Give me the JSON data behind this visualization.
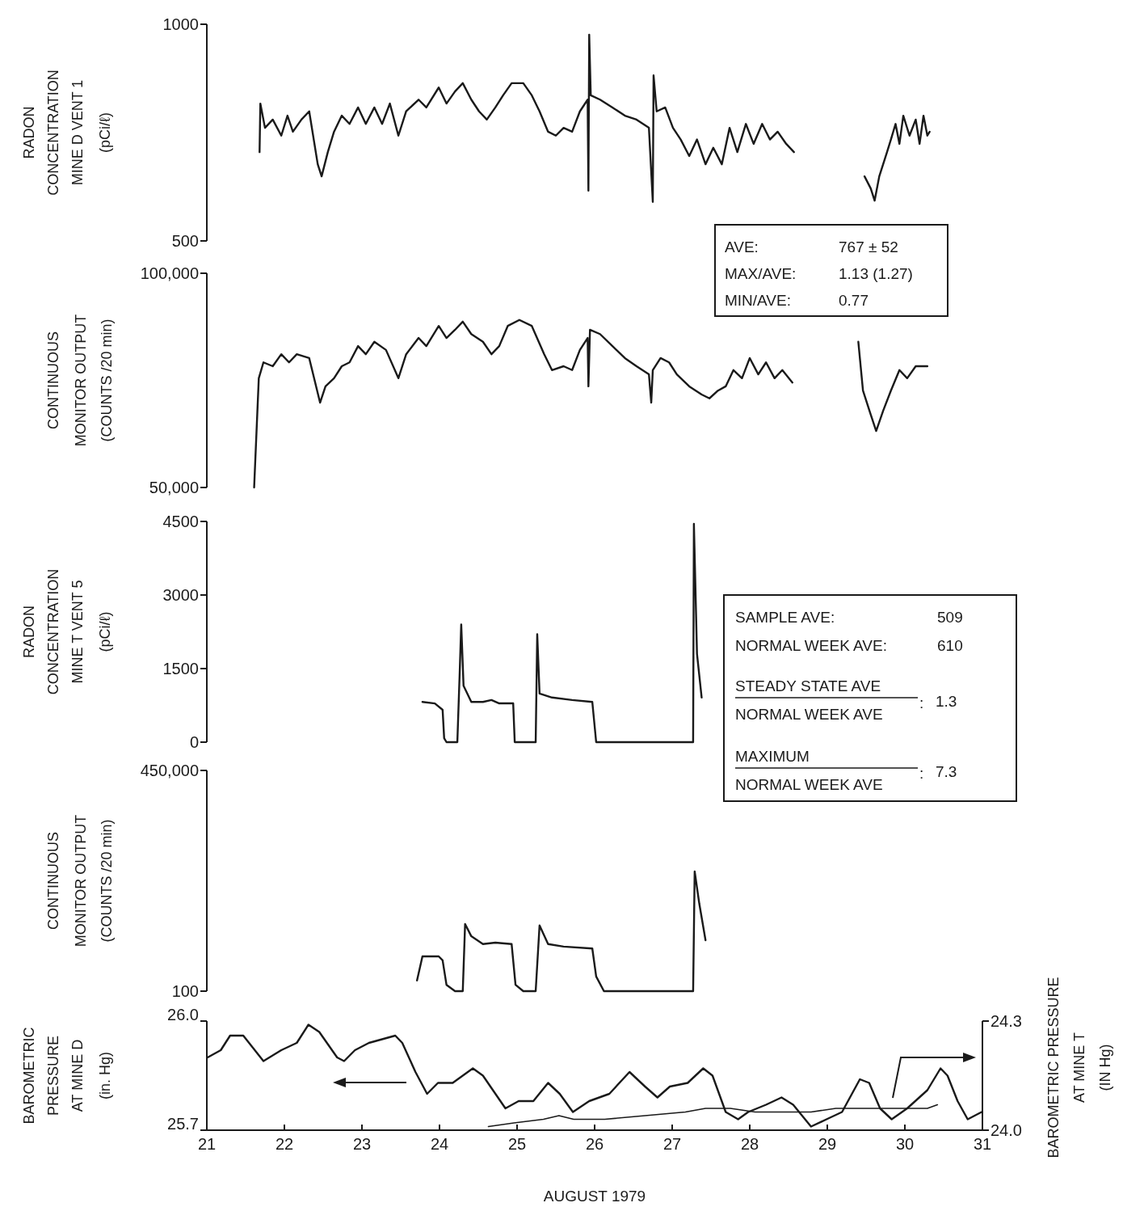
{
  "chart_data": [
    {
      "type": "line",
      "ylabel": "RADON\nCONCENTRATION\nMINE D VENT 1\n(pCi/ℓ)",
      "xlim": [
        21,
        31
      ],
      "ylim": [
        500,
        1000
      ],
      "yticks": [
        500,
        1000
      ],
      "tick_labels": "y",
      "series": [
        {
          "color": "#1a1a1a",
          "x": [
            21.68,
            21.69,
            21.75,
            21.85,
            21.96,
            22.04,
            22.11,
            22.22,
            22.32,
            22.43,
            22.48,
            22.56,
            22.64,
            22.74,
            22.84,
            22.95,
            23.05,
            23.16,
            23.26,
            23.36,
            23.47,
            23.57,
            23.73,
            23.83,
            23.99,
            24.09,
            24.2,
            24.3,
            24.41,
            24.51,
            24.61,
            24.72,
            24.82,
            24.93,
            25.08,
            25.19,
            25.29,
            25.4,
            25.5,
            25.6,
            25.71,
            25.81,
            25.91,
            25.92,
            25.93,
            25.95,
            26.07,
            26.23,
            26.39,
            26.54,
            26.7,
            26.75,
            26.76,
            26.8,
            26.91,
            27.01,
            27.11,
            27.22,
            27.32,
            27.43,
            27.53,
            27.64,
            27.74,
            27.84,
            27.95,
            28.05,
            28.16,
            28.26,
            28.36,
            28.47,
            28.57,
            29.0,
            29.48,
            29.56,
            29.61,
            29.67,
            29.77,
            29.82,
            29.88,
            29.93,
            29.98,
            30.06,
            30.14,
            30.19,
            30.24,
            30.29,
            30.32
          ],
          "values": [
            705,
            817,
            761,
            780,
            743,
            789,
            752,
            780,
            799,
            677,
            649,
            705,
            752,
            789,
            770,
            808,
            770,
            808,
            770,
            817,
            743,
            799,
            826,
            808,
            854,
            817,
            845,
            864,
            826,
            799,
            780,
            808,
            836,
            864,
            864,
            836,
            799,
            752,
            743,
            761,
            752,
            799,
            826,
            616,
            976,
            836,
            826,
            808,
            789,
            780,
            761,
            590,
            882,
            799,
            808,
            761,
            734,
            696,
            734,
            677,
            715,
            677,
            761,
            705,
            770,
            724,
            770,
            734,
            752,
            724,
            705,
            null,
            649,
            621,
            593,
            649,
            705,
            734,
            770,
            724,
            789,
            743,
            780,
            724,
            789,
            743,
            752
          ]
        }
      ],
      "annotations": [
        "AVE:",
        "767 ± 52",
        "MAX/AVE:",
        "1.13 (1.27)",
        "MIN/AVE:",
        "0.77"
      ]
    },
    {
      "type": "line",
      "ylabel": "CONTINUOUS\nMONITOR OUTPUT\n(COUNTS /20 min)",
      "xlim": [
        21,
        31
      ],
      "ylim": [
        50000,
        100000
      ],
      "yticks": [
        {
          "value": 50000,
          "label": "50,000"
        },
        {
          "value": 100000,
          "label": "100,000"
        }
      ],
      "tick_labels": "y",
      "series": [
        {
          "color": "#1a1a1a",
          "x": [
            21.61,
            21.67,
            21.73,
            21.85,
            21.96,
            22.06,
            22.16,
            22.32,
            22.46,
            22.53,
            22.64,
            22.74,
            22.84,
            22.95,
            23.05,
            23.16,
            23.31,
            23.47,
            23.57,
            23.73,
            23.83,
            23.99,
            24.09,
            24.2,
            24.3,
            24.41,
            24.56,
            24.67,
            24.77,
            24.88,
            25.03,
            25.19,
            25.35,
            25.45,
            25.6,
            25.71,
            25.81,
            25.91,
            25.92,
            25.94,
            26.07,
            26.23,
            26.39,
            26.54,
            26.7,
            26.73,
            26.75,
            26.85,
            26.96,
            27.06,
            27.22,
            27.38,
            27.48,
            27.59,
            27.69,
            27.79,
            27.9,
            28.0,
            28.11,
            28.21,
            28.32,
            28.42,
            28.55,
            29.0,
            29.4,
            29.46,
            29.56,
            29.63,
            29.72,
            29.82,
            29.93,
            30.03,
            30.14,
            30.29
          ],
          "values": [
            50000,
            75500,
            79200,
            78300,
            81100,
            79200,
            81100,
            80200,
            69800,
            73600,
            75500,
            78300,
            79200,
            83000,
            81100,
            84000,
            82100,
            75500,
            81100,
            84900,
            83000,
            87700,
            84900,
            86800,
            88700,
            85800,
            84000,
            81100,
            83000,
            87700,
            89100,
            87700,
            81100,
            77400,
            78300,
            77400,
            82100,
            84900,
            73600,
            86800,
            85800,
            83000,
            80200,
            78300,
            76400,
            69800,
            77400,
            80200,
            79200,
            76400,
            73600,
            71700,
            70800,
            72600,
            73600,
            77400,
            75500,
            80200,
            76400,
            79200,
            75500,
            77400,
            74500,
            null,
            84000,
            72600,
            67000,
            63200,
            67900,
            72600,
            77400,
            75500,
            78300,
            78300
          ]
        }
      ]
    },
    {
      "type": "line",
      "ylabel": "RADON\nCONCENTRATION\nMINE T VENT 5\n(pCi/ℓ)",
      "xlim": [
        21,
        31
      ],
      "ylim": [
        0,
        4500
      ],
      "yticks": [
        0,
        1500,
        3000,
        4500
      ],
      "tick_labels": "y",
      "series": [
        {
          "color": "#1a1a1a",
          "x": [
            23.78,
            23.94,
            24.04,
            24.06,
            24.09,
            24.23,
            24.26,
            24.28,
            24.31,
            24.41,
            24.56,
            24.67,
            24.77,
            24.95,
            24.97,
            25.24,
            25.26,
            25.29,
            25.45,
            25.71,
            25.97,
            26.02,
            27.27,
            27.28,
            27.32,
            27.38
          ],
          "values": [
            820,
            790,
            660,
            80,
            0,
            0,
            1400,
            2400,
            1150,
            820,
            820,
            860,
            790,
            790,
            0,
            0,
            2200,
            990,
            910,
            860,
            820,
            0,
            0,
            4450,
            1800,
            910
          ]
        }
      ],
      "annotations": [
        "SAMPLE AVE:",
        "509",
        "NORMAL WEEK AVE:",
        "610",
        "STEADY STATE AVE",
        "NORMAL WEEK AVE",
        ":",
        "1.3",
        "MAXIMUM",
        "NORMAL WEEK AVE",
        ":",
        "7.3"
      ]
    },
    {
      "type": "line",
      "ylabel": "CONTINUOUS\nMONITOR OUTPUT\n(COUNTS /20 min)",
      "xlim": [
        21,
        31
      ],
      "ylim": [
        100,
        450000
      ],
      "yticks": [
        100,
        {
          "value": 450000,
          "label": "450,000"
        }
      ],
      "tick_labels": "y",
      "series": [
        {
          "color": "#1a1a1a",
          "x": [
            23.71,
            23.78,
            23.99,
            24.04,
            24.09,
            24.2,
            24.3,
            24.33,
            24.41,
            24.56,
            24.72,
            24.93,
            24.98,
            25.08,
            25.24,
            25.29,
            25.4,
            25.6,
            25.97,
            26.02,
            26.12,
            27.27,
            27.29,
            27.35,
            27.43
          ],
          "values": [
            22000,
            71000,
            71000,
            63000,
            13000,
            100,
            100,
            137000,
            112000,
            96000,
            99000,
            96000,
            13000,
            100,
            100,
            134000,
            96000,
            91000,
            87000,
            30000,
            100,
            100,
            244000,
            178000,
            104000
          ]
        }
      ]
    },
    {
      "type": "line",
      "ylabel": "BAROMETRIC\nPRESSURE\nAT MINE D\n(in. Hg)",
      "y2label": "BAROMETRIC PRESSURE\nAT MINE T\n(IN Hg)",
      "xlabel": "AUGUST 1979",
      "xlim": [
        21,
        31
      ],
      "xticks": [
        21,
        22,
        23,
        24,
        25,
        26,
        27,
        28,
        29,
        30,
        31
      ],
      "ylim": [
        25.7,
        26.0
      ],
      "yticks": [
        25.7,
        {
          "value": 26.0,
          "label": "26.0"
        }
      ],
      "y2lim": [
        24.0,
        24.3
      ],
      "y2ticks": [
        {
          "value": 24.0,
          "label": "24.0"
        },
        24.3
      ],
      "series": [
        {
          "color": "#1a1a1a",
          "x": [
            21.01,
            21.18,
            21.3,
            21.47,
            21.73,
            21.96,
            22.16,
            22.31,
            22.45,
            22.68,
            22.77,
            22.91,
            23.09,
            23.26,
            23.43,
            23.52,
            23.69,
            23.84,
            23.98,
            24.17,
            24.43,
            24.56,
            24.85,
            25.02,
            25.21,
            25.4,
            25.55,
            25.72,
            25.93,
            26.19,
            26.45,
            26.65,
            26.81,
            26.97,
            27.2,
            27.4,
            27.52,
            27.69,
            27.85,
            27.98,
            28.21,
            28.41,
            28.56,
            28.79,
            28.99,
            29.19,
            29.42,
            29.54,
            29.68,
            29.83,
            30.03,
            30.29,
            30.46,
            30.55,
            30.68,
            30.81,
            30.99
          ],
          "values": [
            25.9,
            25.92,
            25.96,
            25.96,
            25.89,
            25.92,
            25.94,
            25.99,
            25.97,
            25.9,
            25.89,
            25.92,
            25.94,
            25.95,
            25.96,
            25.94,
            25.86,
            25.8,
            25.83,
            25.83,
            25.87,
            25.85,
            25.76,
            25.78,
            25.78,
            25.83,
            25.8,
            25.75,
            25.78,
            25.8,
            25.86,
            25.82,
            25.79,
            25.82,
            25.83,
            25.87,
            25.85,
            25.75,
            25.73,
            25.75,
            25.77,
            25.79,
            25.77,
            25.71,
            25.73,
            25.75,
            25.84,
            25.83,
            25.76,
            25.73,
            25.76,
            25.81,
            25.87,
            25.85,
            25.78,
            25.73,
            25.75
          ]
        },
        {
          "color": "#1a1a1a",
          "axis": "y2",
          "x": [
            24.63,
            24.96,
            25.34,
            25.54,
            25.73,
            26.13,
            26.65,
            27.17,
            27.43,
            27.59,
            27.75,
            28.07,
            28.41,
            28.79,
            29.11,
            29.38,
            29.71,
            30.03,
            30.29,
            30.42
          ],
          "values": [
            24.01,
            24.02,
            24.03,
            24.04,
            24.03,
            24.03,
            24.04,
            24.05,
            24.06,
            24.06,
            24.06,
            24.05,
            24.05,
            24.05,
            24.06,
            24.06,
            24.06,
            24.06,
            24.06,
            24.07
          ]
        }
      ]
    }
  ]
}
